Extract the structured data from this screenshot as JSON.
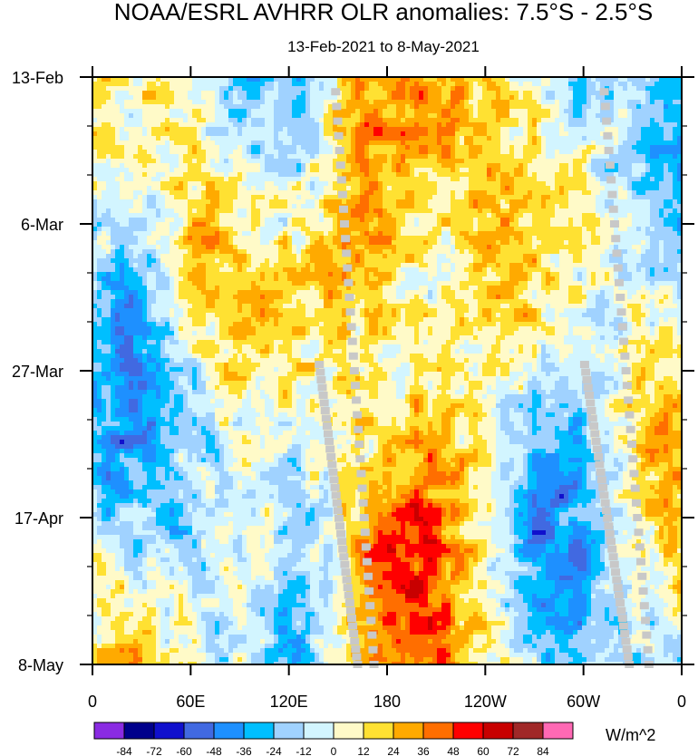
{
  "chart_data": {
    "type": "heatmap",
    "title": "NOAA/ESRL AVHRR OLR anomalies: 7.5°S - 2.5°S",
    "subtitle": "13-Feb-2021 to 8-May-2021",
    "x_ticks": [
      "0",
      "60E",
      "120E",
      "180",
      "120W",
      "60W",
      "0"
    ],
    "x_tick_lon": [
      0,
      60,
      120,
      180,
      240,
      300,
      360
    ],
    "y_ticks": [
      "13-Feb",
      "6-Mar",
      "27-Mar",
      "17-Apr",
      "8-May"
    ],
    "y_tick_day": [
      0,
      21,
      42,
      63,
      84
    ],
    "y_minor_step_days": 7,
    "xlim": [
      0,
      360
    ],
    "ylim_days": [
      0,
      84
    ],
    "colorbar": {
      "levels": [
        "-84",
        "-72",
        "-60",
        "-48",
        "-36",
        "-24",
        "-12",
        "0",
        "12",
        "24",
        "36",
        "48",
        "60",
        "72",
        "84"
      ],
      "colors": [
        "#8a2be2",
        "#00008b",
        "#1010cd",
        "#4169e1",
        "#1e90ff",
        "#00bfff",
        "#a0d2ff",
        "#d2f5ff",
        "#fffac8",
        "#ffe132",
        "#ffaa00",
        "#ff6e00",
        "#ff0000",
        "#c80000",
        "#a02828",
        "#ff69b4"
      ],
      "unit": "W/m^2"
    },
    "missing_color": "#c8c8c8"
  }
}
